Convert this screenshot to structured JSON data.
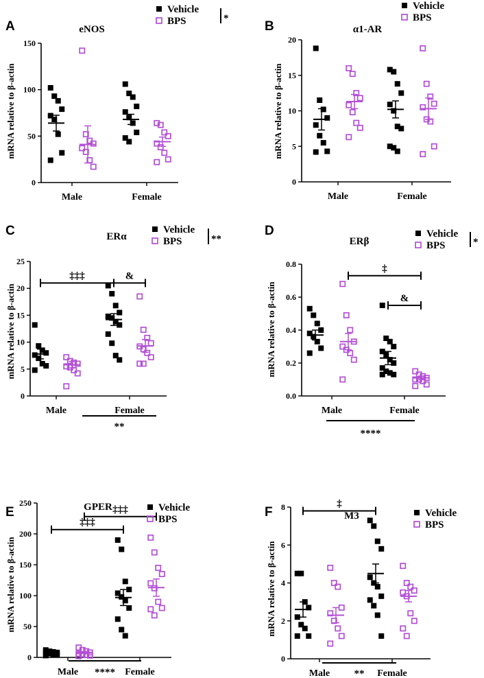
{
  "colors": {
    "vehicle": "#000000",
    "bps": "#b44fd6"
  },
  "chart_data": [
    {
      "type": "scatter",
      "panel": "A",
      "title": "eNOS",
      "ylabel": "mRNA relative to β-actin",
      "xlabel": "",
      "categories": [
        "Male",
        "Female"
      ],
      "ylim": [
        0,
        150
      ],
      "yticks": [
        "0",
        "50",
        "100",
        "150"
      ],
      "legend": [
        "Vehicle",
        "BPS"
      ],
      "legend_position": "top-right",
      "legend_sig": "*",
      "series": [
        {
          "name": "Vehicle",
          "color": "#000000",
          "marker": "filled-square",
          "points": [
            [
              102,
              93,
              88,
              79,
              72,
              68,
              52,
              32,
              24
            ],
            [
              106,
              96,
              92,
              82,
              76,
              70,
              64,
              54,
              48,
              44
            ]
          ],
          "mean": [
            64,
            68
          ],
          "sem": [
            8.5,
            5.5
          ]
        },
        {
          "name": "BPS",
          "color": "#b44fd6",
          "marker": "open-square",
          "points": [
            [
              142,
              52,
              45,
              42,
              37,
              33,
              24,
              17
            ],
            [
              64,
              62,
              54,
              50,
              42,
              38,
              32,
              25,
              22
            ]
          ],
          "mean": [
            41,
            44
          ],
          "sem": [
            20,
            5
          ]
        }
      ],
      "brackets": [],
      "bottom_sig": ""
    },
    {
      "type": "scatter",
      "panel": "B",
      "title": "α1-AR",
      "ylabel": "mRNA relative to β-actin",
      "xlabel": "",
      "categories": [
        "Male",
        "Female"
      ],
      "ylim": [
        0,
        20
      ],
      "yticks": [
        "0",
        "5",
        "10",
        "15",
        "20"
      ],
      "legend": [
        "Vehicle",
        "BPS"
      ],
      "legend_position": "top-right",
      "legend_sig": "",
      "series": [
        {
          "name": "Vehicle",
          "color": "#000000",
          "marker": "filled-square",
          "points": [
            [
              18.8,
              11.5,
              10.2,
              9.0,
              8.0,
              6.5,
              5.5,
              4.3,
              4.2
            ],
            [
              15.8,
              15.5,
              13.8,
              12.5,
              10.9,
              10.0,
              7.8,
              7.5,
              5.0,
              4.8,
              4.3
            ]
          ],
          "mean": [
            8.8,
            10.2
          ],
          "sem": [
            1.5,
            1.2
          ]
        },
        {
          "name": "BPS",
          "color": "#b44fd6",
          "marker": "open-square",
          "points": [
            [
              16.0,
              15.2,
              12.5,
              11.8,
              10.8,
              9.8,
              8.3,
              7.6,
              6.3
            ],
            [
              18.8,
              13.8,
              12.0,
              11.0,
              10.5,
              8.8,
              8.5,
              5.0,
              3.9
            ]
          ],
          "mean": [
            11.3,
            10.3
          ],
          "sem": [
            1.0,
            1.5
          ]
        }
      ],
      "brackets": [],
      "bottom_sig": ""
    },
    {
      "type": "scatter",
      "panel": "C",
      "title": "ERα",
      "ylabel": "mRNA relative to β-actin",
      "xlabel": "",
      "categories": [
        "Male",
        "Female"
      ],
      "ylim": [
        0,
        25
      ],
      "yticks": [
        "0",
        "5",
        "10",
        "15",
        "20",
        "25"
      ],
      "legend": [
        "Vehicle",
        "BPS"
      ],
      "legend_position": "top-right",
      "legend_sig": "**",
      "series": [
        {
          "name": "Vehicle",
          "color": "#000000",
          "marker": "filled-square",
          "points": [
            [
              13.2,
              9.3,
              8.5,
              8.0,
              7.6,
              7.0,
              6.0,
              5.6,
              4.8
            ],
            [
              20.5,
              19.0,
              16.8,
              15.5,
              14.8,
              14.5,
              13.8,
              13.2,
              11.5,
              9.8,
              7.5,
              6.7
            ]
          ],
          "mean": [
            7.8,
            14.2
          ],
          "sem": [
            0.9,
            1.1
          ]
        },
        {
          "name": "BPS",
          "color": "#b44fd6",
          "marker": "open-square",
          "points": [
            [
              7.2,
              6.5,
              6.2,
              6.0,
              5.5,
              5.3,
              4.8,
              4.2,
              1.8
            ],
            [
              18.5,
              12.3,
              10.8,
              9.8,
              9.2,
              8.7,
              8.0,
              7.2,
              6.0,
              6.0
            ]
          ],
          "mean": [
            5.8,
            9.3
          ],
          "sem": [
            0.6,
            1.2
          ]
        }
      ],
      "brackets": [
        {
          "from": "Male-Vehicle",
          "to": "Female-Vehicle",
          "y": 21.0,
          "label": "‡‡‡"
        },
        {
          "from": "Female-Vehicle",
          "to": "Female-BPS",
          "y": 21.0,
          "label": "&"
        }
      ],
      "bottom_sig": "**"
    },
    {
      "type": "scatter",
      "panel": "D",
      "title": "ERβ",
      "ylabel": "mRNA relative to β-actin",
      "xlabel": "",
      "categories": [
        "Male",
        "Female"
      ],
      "ylim": [
        0,
        0.8
      ],
      "yticks": [
        "0.0",
        "0.2",
        "0.4",
        "0.6",
        "0.8"
      ],
      "legend": [
        "Vehicle",
        "BPS"
      ],
      "legend_position": "top-right",
      "legend_sig": "*",
      "series": [
        {
          "name": "Vehicle",
          "color": "#000000",
          "marker": "filled-square",
          "points": [
            [
              0.53,
              0.49,
              0.44,
              0.4,
              0.38,
              0.36,
              0.33,
              0.29,
              0.26
            ],
            [
              0.55,
              0.35,
              0.33,
              0.3,
              0.27,
              0.25,
              0.22,
              0.2,
              0.17,
              0.15,
              0.14,
              0.13,
              0.13
            ]
          ],
          "mean": [
            0.37,
            0.23
          ],
          "sem": [
            0.03,
            0.04
          ]
        },
        {
          "name": "BPS",
          "color": "#b44fd6",
          "marker": "open-square",
          "points": [
            [
              0.68,
              0.49,
              0.4,
              0.33,
              0.3,
              0.28,
              0.26,
              0.22,
              0.1
            ],
            [
              0.15,
              0.13,
              0.12,
              0.11,
              0.1,
              0.1,
              0.09,
              0.07,
              0.06
            ]
          ],
          "mean": [
            0.33,
            0.11
          ],
          "sem": [
            0.05,
            0.01
          ]
        }
      ],
      "brackets": [
        {
          "from": "Male-BPS",
          "to": "Female-BPS",
          "y": 0.73,
          "label": "‡"
        },
        {
          "from": "Female-Vehicle",
          "to": "Female-BPS",
          "y": 0.55,
          "label": "&"
        }
      ],
      "bottom_sig": "****"
    },
    {
      "type": "scatter",
      "panel": "E",
      "title": "GPER",
      "ylabel": "mRNA relative to β-actin",
      "xlabel": "",
      "categories": [
        "Male",
        "Female"
      ],
      "ylim": [
        0,
        250
      ],
      "yticks": [
        "0",
        "50",
        "100",
        "150",
        "200",
        "250"
      ],
      "legend": [
        "Vehicle",
        "BPS"
      ],
      "legend_position": "top-right",
      "legend_sig": "",
      "series": [
        {
          "name": "Vehicle",
          "color": "#000000",
          "marker": "filled-square",
          "points": [
            [
              12,
              10,
              9,
              8,
              7,
              6,
              5,
              4,
              3
            ],
            [
              190,
              175,
              123,
              110,
              104,
              98,
              92,
              80,
              62,
              45,
              35
            ]
          ],
          "mean": [
            7,
            97
          ],
          "sem": [
            1,
            13
          ]
        },
        {
          "name": "BPS",
          "color": "#b44fd6",
          "marker": "open-square",
          "points": [
            [
              16,
              12,
              10,
              8,
              6,
              5,
              4,
              3,
              2
            ],
            [
              194,
              170,
              145,
              135,
              120,
              112,
              90,
              80,
              78,
              68
            ]
          ],
          "mean": [
            8,
            113
          ],
          "sem": [
            1.5,
            14
          ]
        }
      ],
      "brackets": [
        {
          "from": "Male-Vehicle",
          "to": "Female-Vehicle",
          "y": 207,
          "label": "‡‡‡"
        },
        {
          "from": "Male-BPS",
          "to": "Female-BPS",
          "y": 228,
          "label": "‡‡‡"
        }
      ],
      "bottom_sig": "****"
    },
    {
      "type": "scatter",
      "panel": "F",
      "title": "M3",
      "ylabel": "mRNA relative to β-actin",
      "xlabel": "",
      "categories": [
        "Male",
        "Female"
      ],
      "ylim": [
        0,
        8
      ],
      "yticks": [
        "0",
        "2",
        "4",
        "6",
        "8"
      ],
      "legend": [
        "Vehicle",
        "BPS"
      ],
      "legend_position": "top-right",
      "legend_sig": "",
      "series": [
        {
          "name": "Vehicle",
          "color": "#000000",
          "marker": "filled-square",
          "points": [
            [
              4.5,
              4.5,
              3.0,
              2.7,
              2.2,
              1.8,
              1.6,
              1.2,
              1.2
            ],
            [
              7.3,
              7.0,
              6.2,
              5.8,
              4.3,
              4.0,
              3.8,
              3.3,
              3.1,
              2.8,
              2.3,
              1.2
            ]
          ],
          "mean": [
            2.6,
            4.5
          ],
          "sem": [
            0.4,
            0.5
          ]
        },
        {
          "name": "BPS",
          "color": "#b44fd6",
          "marker": "open-square",
          "points": [
            [
              4.8,
              4.0,
              3.8,
              2.7,
              2.4,
              2.0,
              1.6,
              1.2,
              0.8
            ],
            [
              4.9,
              4.0,
              3.8,
              3.6,
              3.5,
              3.3,
              2.4,
              2.0,
              1.6,
              1.2
            ]
          ],
          "mean": [
            2.3,
            3.3
          ],
          "sem": [
            0.4,
            0.3
          ]
        }
      ],
      "brackets": [
        {
          "from": "Male-Vehicle",
          "to": "Female-Vehicle",
          "y": 7.8,
          "label": "‡"
        }
      ],
      "bottom_sig": "**"
    }
  ]
}
